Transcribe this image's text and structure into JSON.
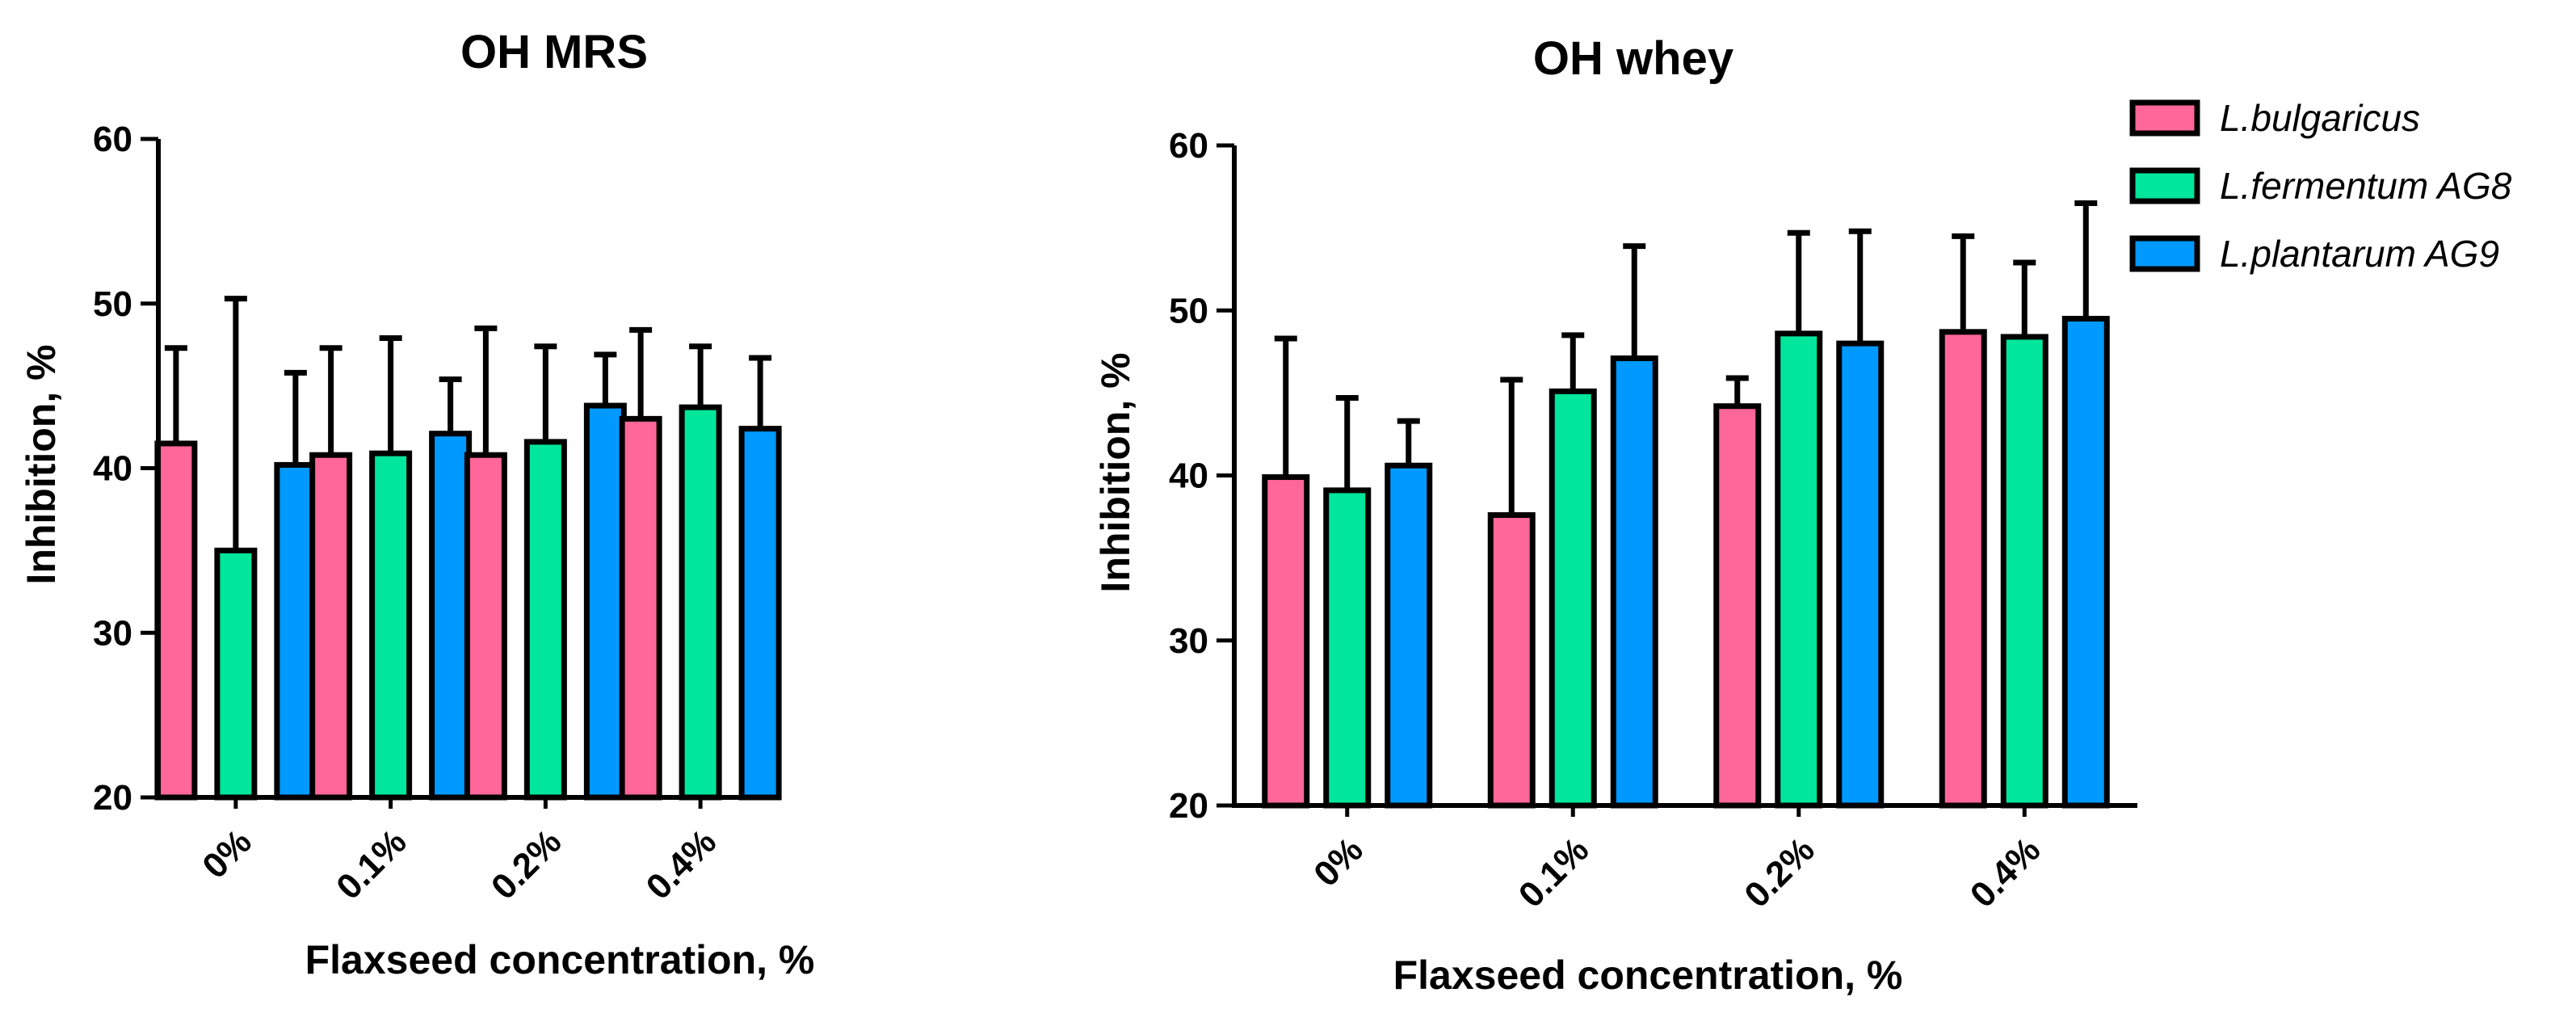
{
  "chart_data": [
    {
      "type": "bar",
      "title": "OH MRS",
      "xlabel": "Flaxseed concentration, %",
      "ylabel": "Inhibition, %",
      "ylim": [
        20,
        60
      ],
      "yticks": [
        20,
        30,
        40,
        50,
        60
      ],
      "categories": [
        "0%",
        "0.1%",
        "0.2%",
        "0.4%"
      ],
      "series": [
        {
          "name": "L.bulgaricus",
          "values": [
            41.5,
            40.8,
            40.8,
            43.0
          ],
          "errors": [
            5.8,
            6.5,
            7.7,
            5.4
          ]
        },
        {
          "name": "L.fermentum AG8",
          "values": [
            35.0,
            40.9,
            41.6,
            43.7
          ],
          "errors": [
            15.3,
            7.0,
            5.8,
            3.7
          ]
        },
        {
          "name": "L.plantarum AG9",
          "values": [
            40.2,
            42.1,
            43.8,
            42.4
          ],
          "errors": [
            5.6,
            3.3,
            3.1,
            4.3
          ]
        }
      ]
    },
    {
      "type": "bar",
      "title": "OH whey",
      "xlabel": "Flaxseed concentration, %",
      "ylabel": "Inhibition, %",
      "ylim": [
        20,
        60
      ],
      "yticks": [
        20,
        30,
        40,
        50,
        60
      ],
      "categories": [
        "0%",
        "0.1%",
        "0.2%",
        "0.4%"
      ],
      "series": [
        {
          "name": "L.bulgaricus",
          "values": [
            39.9,
            37.6,
            44.2,
            48.7
          ],
          "errors": [
            8.4,
            8.2,
            1.7,
            5.8
          ]
        },
        {
          "name": "L.fermentum AG8",
          "values": [
            39.1,
            45.1,
            48.6,
            48.4
          ],
          "errors": [
            5.6,
            3.4,
            6.1,
            4.5
          ]
        },
        {
          "name": "L.plantarum AG9",
          "values": [
            40.6,
            47.1,
            48.0,
            49.5
          ],
          "errors": [
            2.7,
            6.8,
            6.8,
            7.0
          ]
        }
      ]
    }
  ],
  "legend": {
    "position": "top-right",
    "items": [
      {
        "label": "L.bulgaricus",
        "color": "#ff6699"
      },
      {
        "label": "L.fermentum AG8",
        "color": "#00e69a"
      },
      {
        "label": "L.plantarum AG9",
        "color": "#0099ff"
      }
    ]
  }
}
